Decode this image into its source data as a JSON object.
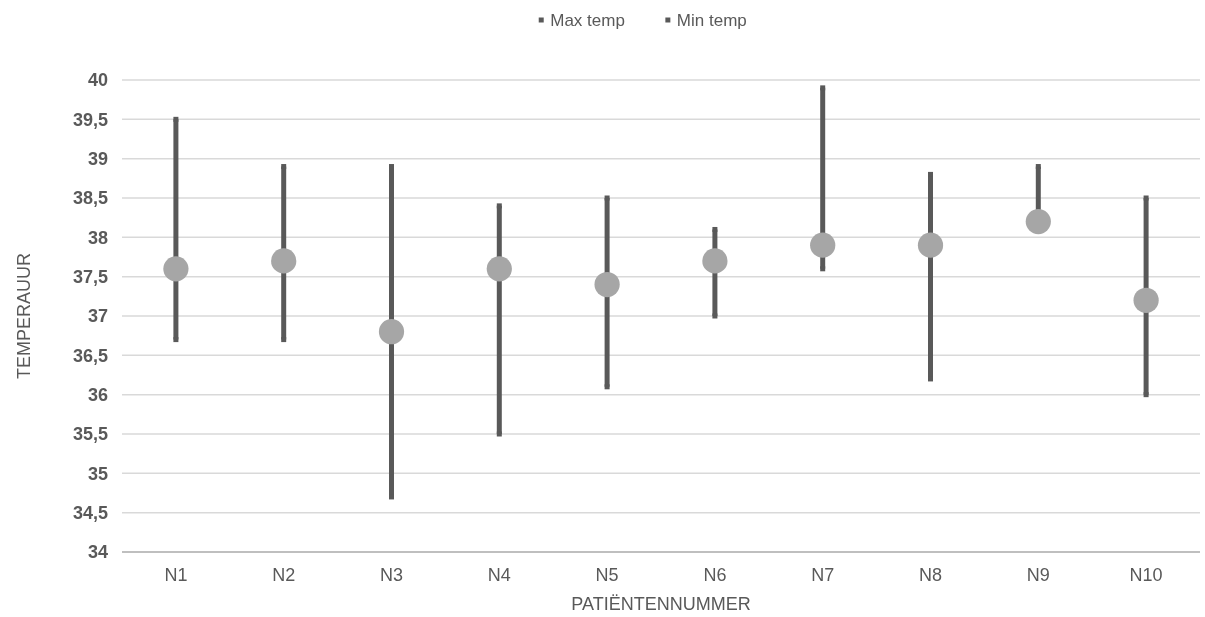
{
  "chart_data": {
    "type": "scatter",
    "xlabel": "PATIËNTENNUMMER",
    "ylabel": "TEMPERAUUR",
    "categories": [
      "N1",
      "N2",
      "N3",
      "N4",
      "N5",
      "N6",
      "N7",
      "N8",
      "N9",
      "N10"
    ],
    "series": [
      {
        "name": "Max temp",
        "color": "#595959",
        "marker": "square",
        "values": [
          39.5,
          38.9,
          38.9,
          38.4,
          38.5,
          38.1,
          39.9,
          38.8,
          38.9,
          38.5
        ]
      },
      {
        "name": "Min temp",
        "color": "#595959",
        "marker": "square",
        "values": [
          36.7,
          36.7,
          34.7,
          35.5,
          36.1,
          37.0,
          37.6,
          36.2,
          null,
          36.0
        ]
      },
      {
        "color": "#a6a6a6",
        "marker": "circle",
        "values": [
          37.6,
          37.7,
          36.8,
          37.6,
          37.4,
          37.7,
          37.9,
          37.9,
          38.2,
          37.2
        ]
      }
    ],
    "ylim": [
      34,
      40
    ],
    "yticks": [
      34,
      {
        "value": 34.5,
        "label": "34,5"
      },
      35,
      {
        "value": 35.5,
        "label": "35,5"
      },
      36,
      {
        "value": 36.5,
        "label": "36,5"
      },
      37,
      {
        "value": 37.5,
        "label": "37,5"
      },
      38,
      {
        "value": 38.5,
        "label": "38,5"
      },
      39,
      {
        "value": 39.5,
        "label": "39,5"
      },
      40
    ],
    "grid": "y",
    "legend": "top"
  }
}
